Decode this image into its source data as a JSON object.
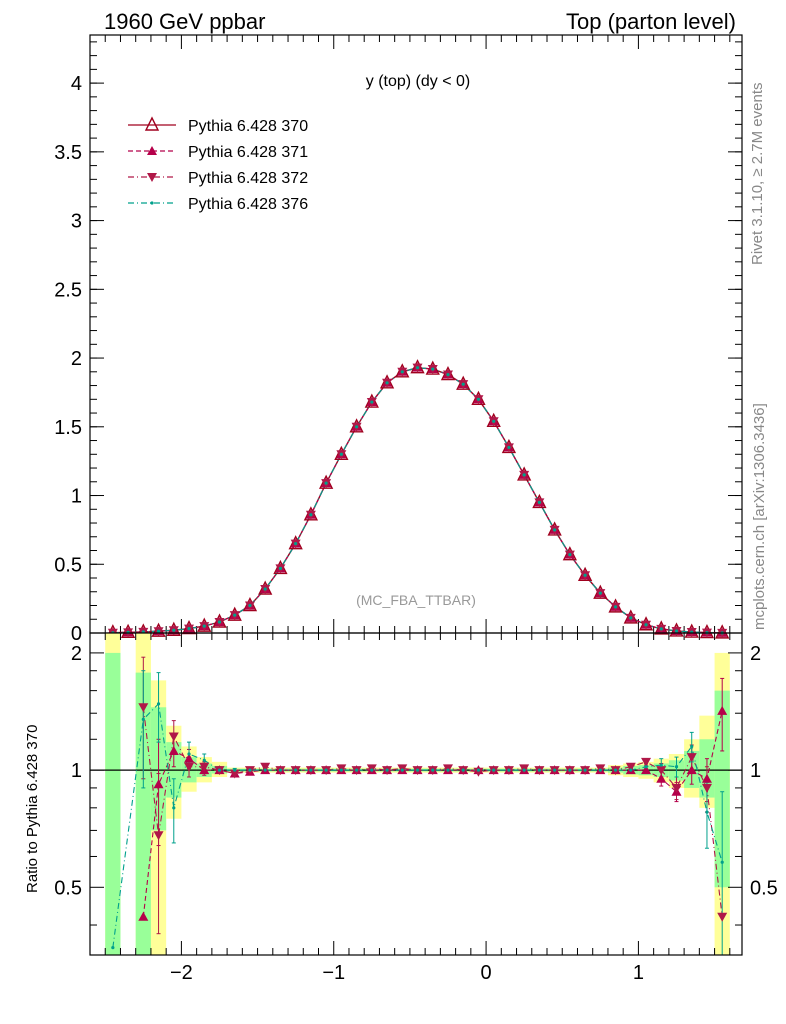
{
  "header": {
    "left": "1960 GeV ppbar",
    "right": "Top (parton level)"
  },
  "side_text": {
    "rivet": "Rivet 3.1.10, ≥ 2.7M events",
    "mcplots": "mcplots.cern.ch [arXiv:1306.3436]"
  },
  "colors": {
    "s370": "#a0001e",
    "s371": "#b5004a",
    "s372": "#b01848",
    "s376": "#00a08c",
    "band_yellow": "#ffff99",
    "band_green": "#99ff99"
  },
  "chart_data": [
    {
      "type": "line",
      "title": "y (top) (dy < 0)",
      "analysis_tag": "(MC_FBA_TTBAR)",
      "xlim": [
        -2.6,
        1.68
      ],
      "ylim": [
        0,
        4.35
      ],
      "yticks": [
        0,
        0.5,
        1,
        1.5,
        2,
        2.5,
        3,
        3.5,
        4
      ],
      "ytick_labels": [
        "0",
        "0.5",
        "1",
        "1.5",
        "2",
        "2.5",
        "3",
        "3.5",
        "4"
      ],
      "legend": {
        "placement": "top-left"
      },
      "x": [
        -2.45,
        -2.35,
        -2.25,
        -2.15,
        -2.05,
        -1.95,
        -1.85,
        -1.75,
        -1.65,
        -1.55,
        -1.45,
        -1.35,
        -1.25,
        -1.15,
        -1.05,
        -0.95,
        -0.85,
        -0.75,
        -0.65,
        -0.55,
        -0.45,
        -0.35,
        -0.25,
        -0.15,
        -0.05,
        0.05,
        0.15,
        0.25,
        0.35,
        0.45,
        0.55,
        0.65,
        0.75,
        0.85,
        0.95,
        1.05,
        1.15,
        1.25,
        1.35,
        1.45,
        1.55
      ],
      "series": [
        {
          "name": "Pythia 6.428 370",
          "marker": "open-triangle-up",
          "style": "solid",
          "values": [
            0.002,
            0.005,
            0.008,
            0.013,
            0.02,
            0.032,
            0.05,
            0.08,
            0.13,
            0.2,
            0.32,
            0.47,
            0.65,
            0.86,
            1.09,
            1.3,
            1.5,
            1.68,
            1.82,
            1.9,
            1.93,
            1.92,
            1.88,
            1.81,
            1.7,
            1.54,
            1.35,
            1.15,
            0.95,
            0.75,
            0.57,
            0.42,
            0.29,
            0.19,
            0.11,
            0.06,
            0.03,
            0.015,
            0.007,
            0.003,
            0.001
          ]
        },
        {
          "name": "Pythia 6.428 371",
          "marker": "filled-triangle-up",
          "style": "dashed",
          "values": [
            0.002,
            0.005,
            0.008,
            0.013,
            0.02,
            0.032,
            0.05,
            0.08,
            0.13,
            0.2,
            0.32,
            0.47,
            0.65,
            0.86,
            1.09,
            1.3,
            1.5,
            1.68,
            1.82,
            1.9,
            1.93,
            1.92,
            1.88,
            1.81,
            1.7,
            1.54,
            1.35,
            1.15,
            0.95,
            0.75,
            0.57,
            0.42,
            0.29,
            0.19,
            0.11,
            0.06,
            0.03,
            0.015,
            0.007,
            0.003,
            0.001
          ]
        },
        {
          "name": "Pythia 6.428 372",
          "marker": "filled-triangle-down",
          "style": "dashdot",
          "values": [
            0.002,
            0.005,
            0.008,
            0.013,
            0.02,
            0.032,
            0.05,
            0.08,
            0.13,
            0.2,
            0.32,
            0.47,
            0.65,
            0.86,
            1.09,
            1.3,
            1.5,
            1.68,
            1.82,
            1.9,
            1.93,
            1.92,
            1.88,
            1.81,
            1.7,
            1.54,
            1.35,
            1.15,
            0.95,
            0.75,
            0.57,
            0.42,
            0.29,
            0.19,
            0.11,
            0.06,
            0.03,
            0.015,
            0.007,
            0.003,
            0.001
          ]
        },
        {
          "name": "Pythia 6.428 376",
          "marker": "small-dot",
          "style": "dashdot",
          "values": [
            0.002,
            0.005,
            0.008,
            0.013,
            0.02,
            0.032,
            0.05,
            0.08,
            0.13,
            0.2,
            0.32,
            0.47,
            0.65,
            0.86,
            1.09,
            1.3,
            1.5,
            1.68,
            1.82,
            1.9,
            1.93,
            1.92,
            1.88,
            1.81,
            1.7,
            1.54,
            1.35,
            1.15,
            0.95,
            0.75,
            0.57,
            0.42,
            0.29,
            0.19,
            0.11,
            0.06,
            0.03,
            0.015,
            0.007,
            0.003,
            0.001
          ]
        }
      ]
    },
    {
      "type": "line",
      "ylabel": "Ratio to Pythia 6.428 370",
      "xlim": [
        -2.6,
        1.68
      ],
      "ylim": [
        0.335,
        2.25
      ],
      "yticks": [
        0.5,
        1,
        2
      ],
      "ytick_labels": [
        "0.5",
        "1",
        "2"
      ],
      "xticks": [
        -2,
        -1,
        0,
        1
      ],
      "xtick_labels": [
        "−2",
        "−1",
        "0",
        "1"
      ],
      "bands": [
        {
          "x_low": -2.5,
          "x_high": -2.4,
          "yellow": [
            0.33,
            2.3
          ],
          "green": [
            0.33,
            2.0
          ]
        },
        {
          "x_low": -2.3,
          "x_high": -2.2,
          "yellow": [
            0.33,
            2.3
          ],
          "green": [
            0.33,
            1.78
          ]
        },
        {
          "x_low": -2.2,
          "x_high": -2.1,
          "yellow": [
            0.33,
            1.7
          ],
          "green": [
            0.7,
            1.45
          ]
        },
        {
          "x_low": -2.1,
          "x_high": -2.0,
          "yellow": [
            0.75,
            1.3
          ],
          "green": [
            0.85,
            1.18
          ]
        },
        {
          "x_low": -2.0,
          "x_high": -1.9,
          "yellow": [
            0.88,
            1.15
          ],
          "green": [
            0.93,
            1.08
          ]
        },
        {
          "x_low": -1.9,
          "x_high": -1.8,
          "yellow": [
            0.93,
            1.08
          ],
          "green": [
            0.96,
            1.04
          ]
        },
        {
          "x_low": -1.8,
          "x_high": -1.7,
          "yellow": [
            0.96,
            1.05
          ],
          "green": [
            0.98,
            1.025
          ]
        },
        {
          "x_low": -1.7,
          "x_high": 0.8,
          "yellow": [
            0.985,
            1.015
          ],
          "green": [
            0.992,
            1.008
          ]
        },
        {
          "x_low": 0.8,
          "x_high": 0.9,
          "yellow": [
            0.97,
            1.03
          ],
          "green": [
            0.985,
            1.015
          ]
        },
        {
          "x_low": 0.9,
          "x_high": 1.0,
          "yellow": [
            0.96,
            1.04
          ],
          "green": [
            0.975,
            1.025
          ]
        },
        {
          "x_low": 1.0,
          "x_high": 1.1,
          "yellow": [
            0.95,
            1.05
          ],
          "green": [
            0.97,
            1.03
          ]
        },
        {
          "x_low": 1.1,
          "x_high": 1.2,
          "yellow": [
            0.93,
            1.07
          ],
          "green": [
            0.96,
            1.04
          ]
        },
        {
          "x_low": 1.2,
          "x_high": 1.3,
          "yellow": [
            0.9,
            1.1
          ],
          "green": [
            0.94,
            1.06
          ]
        },
        {
          "x_low": 1.3,
          "x_high": 1.4,
          "yellow": [
            0.85,
            1.2
          ],
          "green": [
            0.9,
            1.12
          ]
        },
        {
          "x_low": 1.4,
          "x_high": 1.5,
          "yellow": [
            0.8,
            1.38
          ],
          "green": [
            0.85,
            1.2
          ]
        },
        {
          "x_low": 1.5,
          "x_high": 1.6,
          "yellow": [
            0.33,
            2.0
          ],
          "green": [
            0.5,
            1.6
          ]
        }
      ],
      "series": [
        {
          "name": "Pythia 6.428 371",
          "x": [
            -2.25,
            -2.15,
            -2.05,
            -1.95,
            -1.85,
            -1.75,
            -1.65,
            -1.55,
            -1.45,
            -1.35,
            -1.25,
            -1.15,
            -1.05,
            -0.95,
            -0.85,
            -0.75,
            -0.65,
            -0.55,
            -0.45,
            -0.35,
            -0.25,
            -0.15,
            -0.05,
            0.05,
            0.15,
            0.25,
            0.35,
            0.45,
            0.55,
            0.65,
            0.75,
            0.85,
            0.95,
            1.05,
            1.15,
            1.25,
            1.35,
            1.45,
            1.55
          ],
          "values": [
            0.42,
            0.92,
            1.12,
            1.07,
            1.0,
            1.0,
            0.98,
            0.99,
            1.0,
            1.0,
            1.0,
            1.0,
            1.0,
            1.0,
            1.0,
            1.0,
            1.0,
            1.0,
            1.0,
            1.0,
            1.0,
            1.0,
            1.0,
            1.0,
            1.0,
            1.0,
            1.0,
            1.0,
            1.0,
            1.0,
            1.0,
            1.0,
            1.0,
            1.0,
            0.95,
            0.88,
            1.0,
            0.95,
            1.42
          ],
          "err": [
            0.0,
            0.28,
            0.1,
            0.06,
            0.03,
            0.02,
            0.01,
            0.01,
            0.01,
            0.01,
            0.01,
            0.01,
            0.01,
            0.01,
            0.01,
            0.01,
            0.01,
            0.01,
            0.01,
            0.01,
            0.01,
            0.01,
            0.01,
            0.01,
            0.01,
            0.01,
            0.01,
            0.01,
            0.01,
            0.01,
            0.01,
            0.01,
            0.01,
            0.02,
            0.04,
            0.05,
            0.08,
            0.12,
            0.3
          ]
        },
        {
          "name": "Pythia 6.428 372",
          "x": [
            -2.25,
            -2.15,
            -2.05,
            -1.95,
            -1.85,
            -1.75,
            -1.65,
            -1.55,
            -1.45,
            -1.35,
            -1.25,
            -1.15,
            -1.05,
            -0.95,
            -0.85,
            -0.75,
            -0.65,
            -0.55,
            -0.45,
            -0.35,
            -0.25,
            -0.15,
            -0.05,
            0.05,
            0.15,
            0.25,
            0.35,
            0.45,
            0.55,
            0.65,
            0.75,
            0.85,
            0.95,
            1.05,
            1.15,
            1.25,
            1.35,
            1.45,
            1.55
          ],
          "values": [
            1.45,
            0.68,
            1.22,
            1.02,
            1.02,
            1.0,
            0.98,
            1.0,
            1.02,
            1.0,
            1.0,
            1.0,
            1.0,
            1.01,
            1.0,
            1.01,
            1.0,
            1.01,
            1.0,
            1.0,
            1.01,
            1.0,
            0.99,
            1.0,
            1.0,
            1.01,
            1.0,
            1.0,
            1.0,
            1.0,
            1.01,
            1.0,
            1.02,
            1.05,
            1.0,
            0.9,
            1.08,
            0.9,
            0.42
          ],
          "err": [
            0.5,
            0.3,
            0.12,
            0.06,
            0.03,
            0.02,
            0.01,
            0.01,
            0.01,
            0.01,
            0.01,
            0.01,
            0.01,
            0.01,
            0.01,
            0.01,
            0.01,
            0.01,
            0.01,
            0.01,
            0.01,
            0.01,
            0.01,
            0.01,
            0.01,
            0.01,
            0.01,
            0.01,
            0.01,
            0.01,
            0.01,
            0.01,
            0.01,
            0.02,
            0.04,
            0.06,
            0.08,
            0.12,
            0.0
          ]
        },
        {
          "name": "Pythia 6.428 376",
          "x": [
            -2.45,
            -2.25,
            -2.15,
            -2.05,
            -1.95,
            -1.85,
            -1.75,
            -1.65,
            -1.55,
            -1.45,
            -1.35,
            -1.25,
            -1.15,
            -1.05,
            -0.95,
            -0.85,
            -0.75,
            -0.65,
            -0.55,
            -0.45,
            -0.35,
            -0.25,
            -0.15,
            -0.05,
            0.05,
            0.15,
            0.25,
            0.35,
            0.45,
            0.55,
            0.65,
            0.75,
            0.85,
            0.95,
            1.05,
            1.15,
            1.25,
            1.35,
            1.45,
            1.55
          ],
          "values": [
            0.35,
            1.35,
            1.48,
            0.8,
            1.1,
            1.06,
            1.0,
            1.0,
            1.0,
            1.0,
            1.0,
            1.0,
            1.0,
            1.0,
            1.0,
            1.0,
            1.0,
            1.0,
            1.0,
            1.0,
            1.0,
            1.0,
            1.0,
            1.0,
            1.0,
            1.0,
            1.0,
            1.0,
            1.0,
            1.0,
            1.0,
            1.0,
            1.0,
            1.0,
            1.02,
            1.03,
            1.02,
            1.15,
            0.78,
            0.58
          ],
          "err": [
            0.0,
            0.45,
            0.3,
            0.15,
            0.08,
            0.04,
            0.02,
            0.01,
            0.01,
            0.01,
            0.01,
            0.01,
            0.01,
            0.01,
            0.01,
            0.01,
            0.01,
            0.01,
            0.01,
            0.01,
            0.01,
            0.01,
            0.01,
            0.01,
            0.01,
            0.01,
            0.01,
            0.01,
            0.01,
            0.01,
            0.01,
            0.01,
            0.01,
            0.01,
            0.02,
            0.04,
            0.06,
            0.1,
            0.15,
            0.3
          ]
        }
      ]
    }
  ]
}
